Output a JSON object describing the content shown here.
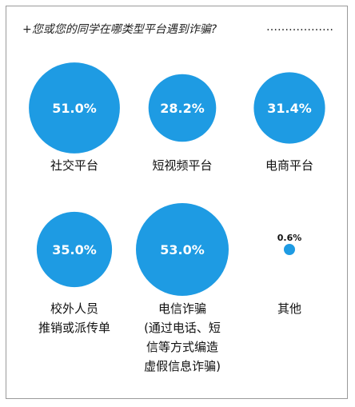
{
  "chart_data": {
    "type": "bubble",
    "title": "+您或您的同学在哪类型平台遇到诈骗?",
    "title_trailer": "………………",
    "unit": "%",
    "bubble_color": "#1e9be3",
    "categories": [
      {
        "label_lines": [
          "社交平台"
        ],
        "value": 51.0,
        "value_label": "51.0%"
      },
      {
        "label_lines": [
          "短视频平台"
        ],
        "value": 28.2,
        "value_label": "28.2%"
      },
      {
        "label_lines": [
          "电商平台"
        ],
        "value": 31.4,
        "value_label": "31.4%"
      },
      {
        "label_lines": [
          "校外人员",
          "推销或派传单"
        ],
        "value": 35.0,
        "value_label": "35.0%"
      },
      {
        "label_lines": [
          "电信诈骗",
          "(通过电话、短",
          "信等方式编造",
          "虚假信息诈骗)"
        ],
        "value": 53.0,
        "value_label": "53.0%"
      },
      {
        "label_lines": [
          "其他"
        ],
        "value": 0.6,
        "value_label": "0.6%"
      }
    ]
  }
}
